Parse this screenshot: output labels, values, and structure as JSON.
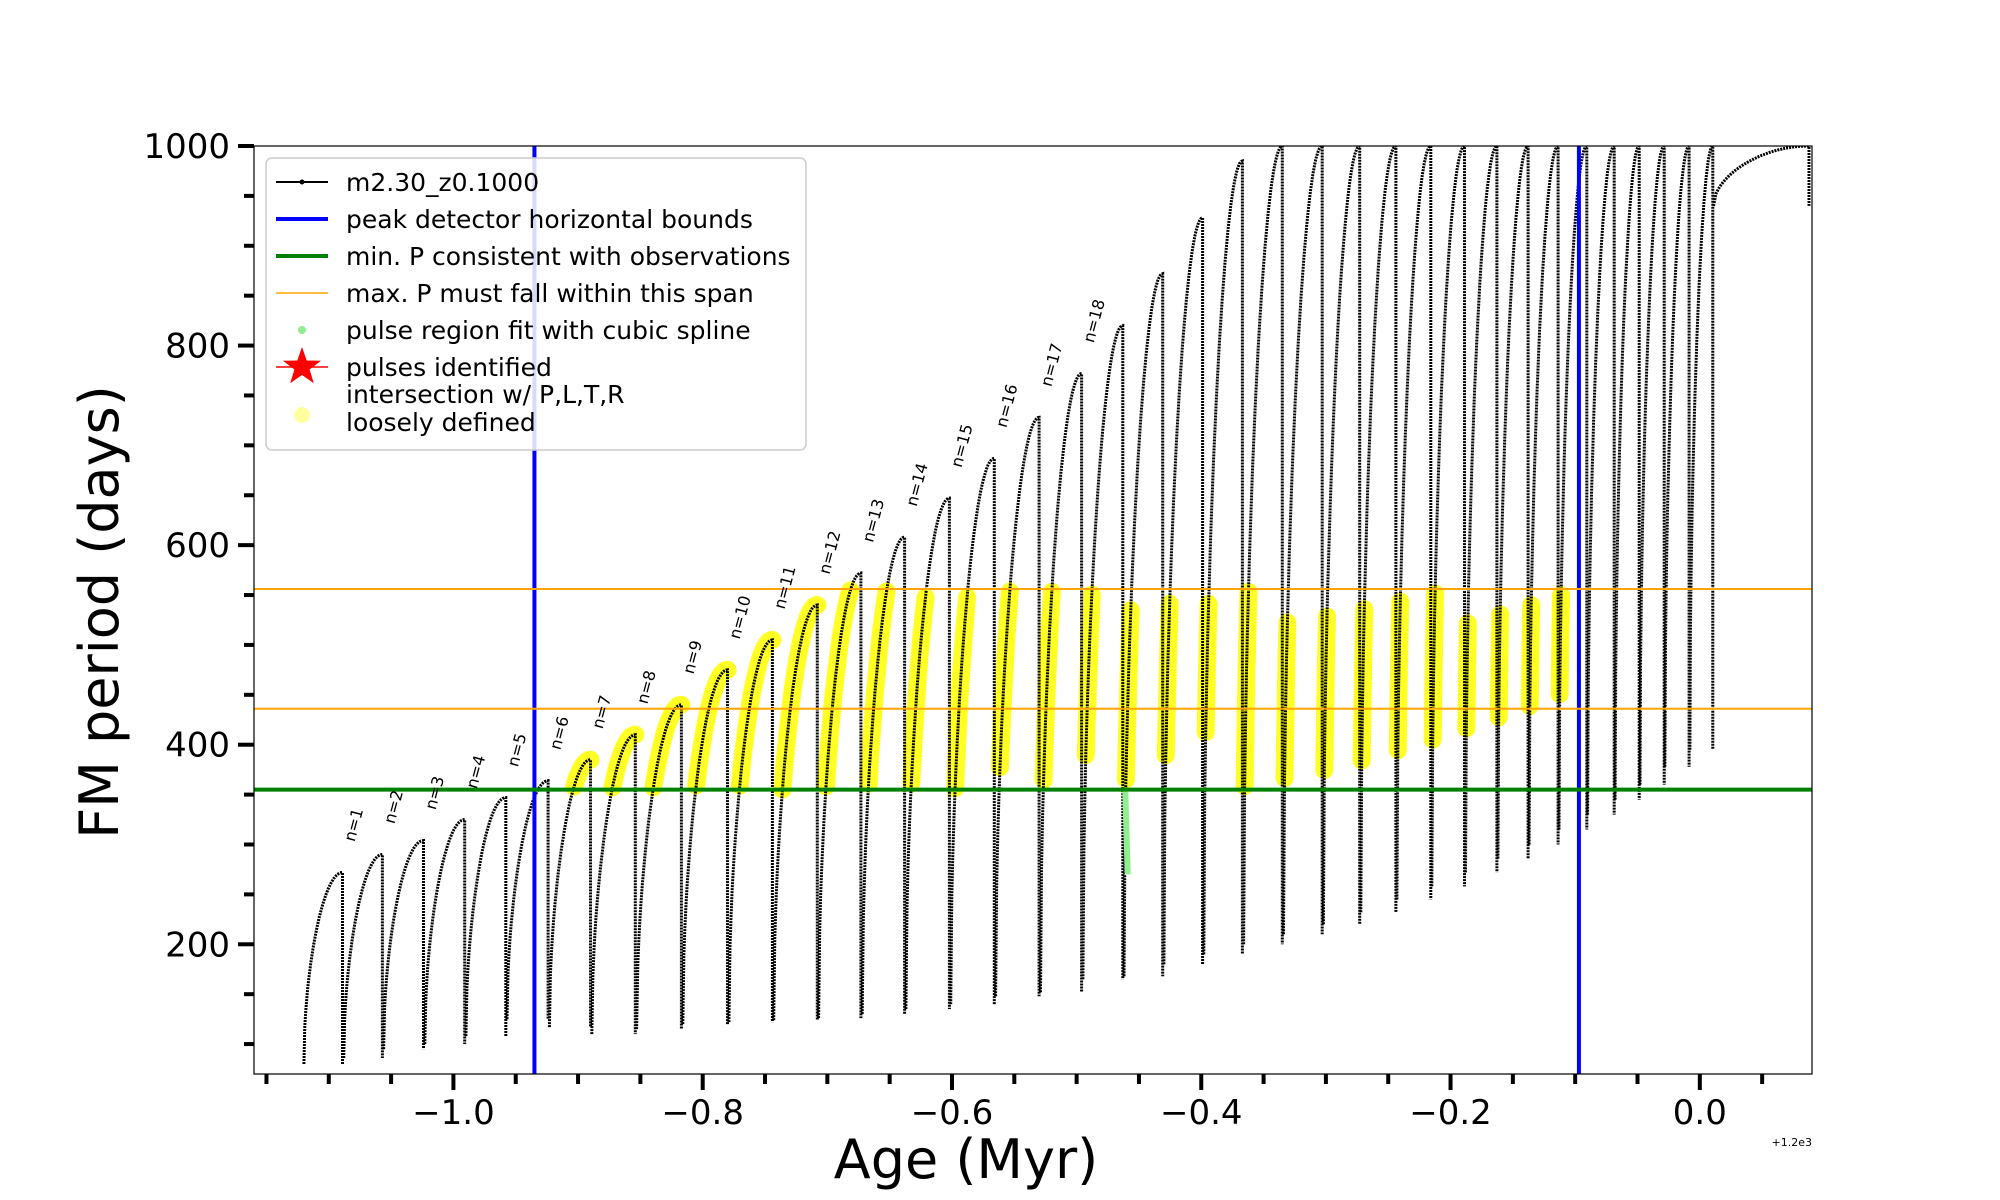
{
  "chart_data": {
    "type": "line",
    "xlabel": "Age (Myr)",
    "ylabel": "FM period (days)",
    "x_offset_label": "+1.2e3",
    "xlim": [
      -1.16,
      0.09
    ],
    "ylim": [
      70,
      1000
    ],
    "x_ticks": [
      -1.0,
      -0.8,
      -0.6,
      -0.4,
      -0.2,
      0.0
    ],
    "x_tick_labels": [
      "−1.0",
      "−0.8",
      "−0.6",
      "−0.4",
      "−0.2",
      "0.0"
    ],
    "y_ticks": [
      200,
      400,
      600,
      800,
      1000
    ],
    "y_tick_labels": [
      "200",
      "400",
      "600",
      "800",
      "1000"
    ],
    "legend_position": "top-left",
    "colors": {
      "track": "#000000",
      "bounds": "#0000ff",
      "min_p": "#008000",
      "max_p_span": "#ffa500",
      "spline": "#90ee90",
      "pulses": "#ff0000",
      "intersection": "#ffff00"
    },
    "legend": [
      {
        "label": "m2.30_z0.1000",
        "marker": "line-dot",
        "color": "#000000"
      },
      {
        "label": "peak detector horizontal bounds",
        "marker": "line-thick",
        "color": "#0000ff"
      },
      {
        "label": "min. P consistent with observations",
        "marker": "line-thick",
        "color": "#008000"
      },
      {
        "label": "max. P must fall within this span",
        "marker": "line-thin",
        "color": "#ffa500"
      },
      {
        "label": "pulse region fit with cubic spline",
        "marker": "dot",
        "color": "#90ee90"
      },
      {
        "label": "pulses identified",
        "marker": "star",
        "color": "#ff0000"
      },
      {
        "label": "intersection w/ P,L,T,R",
        "label2": "loosely defined",
        "marker": "circle",
        "color": "#ffffa0"
      }
    ],
    "vertical_bounds": [
      -0.935,
      -0.097
    ],
    "min_period": 355,
    "max_period_span": [
      436,
      556
    ],
    "pulses": [
      {
        "start": -1.12,
        "peak": 272,
        "min": 80,
        "label": "n=1"
      },
      {
        "start": -1.088,
        "peak": 290,
        "min": 86,
        "label": "n=2"
      },
      {
        "start": -1.056,
        "peak": 304,
        "min": 95,
        "label": "n=3"
      },
      {
        "start": -1.023,
        "peak": 325,
        "min": 100,
        "label": "n=4"
      },
      {
        "start": -0.99,
        "peak": 347,
        "min": 108,
        "label": "n=5"
      },
      {
        "start": -0.957,
        "peak": 364,
        "min": 125,
        "label": "n=6"
      },
      {
        "start": -0.923,
        "peak": 385,
        "min": 117,
        "label": "n=7"
      },
      {
        "start": -0.889,
        "peak": 410,
        "min": 110,
        "label": "n=8"
      },
      {
        "start": -0.853,
        "peak": 440,
        "min": 115,
        "label": "n=9"
      },
      {
        "start": -0.816,
        "peak": 475,
        "min": 120,
        "label": "n=10"
      },
      {
        "start": -0.779,
        "peak": 505,
        "min": 122,
        "label": "n=11"
      },
      {
        "start": -0.743,
        "peak": 540,
        "min": 124,
        "label": "n=12"
      },
      {
        "start": -0.707,
        "peak": 572,
        "min": 126,
        "label": "n=13"
      },
      {
        "start": -0.672,
        "peak": 608,
        "min": 130,
        "label": "n=14"
      },
      {
        "start": -0.637,
        "peak": 647,
        "min": 135,
        "label": "n=15"
      },
      {
        "start": -0.601,
        "peak": 687,
        "min": 140,
        "label": "n=16"
      },
      {
        "start": -0.565,
        "peak": 728,
        "min": 148,
        "label": "n=17"
      },
      {
        "start": -0.529,
        "peak": 772,
        "min": 152,
        "label": "n=18"
      },
      {
        "start": -0.495,
        "peak": 820,
        "min": 165,
        "label": ""
      },
      {
        "start": -0.462,
        "peak": 872,
        "min": 168,
        "label": ""
      },
      {
        "start": -0.43,
        "peak": 928,
        "min": 180,
        "label": ""
      },
      {
        "start": -0.398,
        "peak": 985,
        "min": 190,
        "label": ""
      },
      {
        "start": -0.366,
        "peak": 1000,
        "min": 200,
        "label": ""
      },
      {
        "start": -0.334,
        "peak": 1000,
        "min": 210,
        "label": ""
      },
      {
        "start": -0.302,
        "peak": 1000,
        "min": 220,
        "label": ""
      },
      {
        "start": -0.272,
        "peak": 1000,
        "min": 232,
        "label": ""
      },
      {
        "start": -0.243,
        "peak": 1000,
        "min": 245,
        "label": ""
      },
      {
        "start": -0.215,
        "peak": 1000,
        "min": 258,
        "label": ""
      },
      {
        "start": -0.188,
        "peak": 1000,
        "min": 272,
        "label": ""
      },
      {
        "start": -0.162,
        "peak": 1000,
        "min": 286,
        "label": ""
      },
      {
        "start": -0.137,
        "peak": 1000,
        "min": 300,
        "label": ""
      },
      {
        "start": -0.113,
        "peak": 1000,
        "min": 315,
        "label": ""
      },
      {
        "start": -0.09,
        "peak": 1000,
        "min": 330,
        "label": ""
      },
      {
        "start": -0.068,
        "peak": 1000,
        "min": 345,
        "label": ""
      },
      {
        "start": -0.048,
        "peak": 1000,
        "min": 360,
        "label": ""
      },
      {
        "start": -0.028,
        "peak": 1000,
        "min": 378,
        "label": ""
      },
      {
        "start": -0.008,
        "peak": 1000,
        "min": 395,
        "label": ""
      },
      {
        "start": 0.011,
        "peak": 1000,
        "min": 940,
        "label": ""
      }
    ]
  }
}
